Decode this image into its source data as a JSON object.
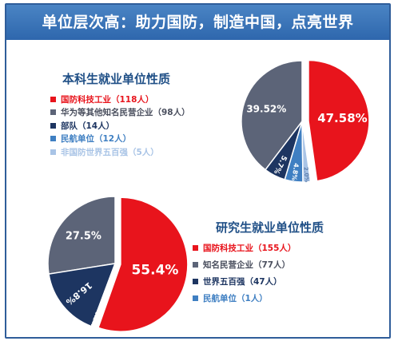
{
  "header": {
    "title": "单位层次高：助力国防，制造中国，点亮世界"
  },
  "chart_data": [
    {
      "type": "pie",
      "title": "本科生就业单位性质",
      "categories": [
        "国防科技工业（118人）",
        "华为等其他知名民营企业（98人）",
        "部队（14人）",
        "民航单位（12人）",
        "非国防世界五百强（5人）"
      ],
      "values": [
        47.58,
        39.52,
        5.7,
        4.8,
        2.0
      ],
      "slice_labels": [
        "47.58%",
        "39.52%",
        "5.7%",
        "4.8%",
        "2.0%"
      ],
      "colors": [
        "#e8141c",
        "#5c6478",
        "#1d3561",
        "#3f7fc2",
        "#a9c4e6"
      ],
      "legend_text_colors": [
        "#e8141c",
        "#4a4f5e",
        "#1d3561",
        "#3f7fc2",
        "#a9c4e6"
      ],
      "legend_position": "left"
    },
    {
      "type": "pie",
      "title": "研究生就业单位性质",
      "categories": [
        "国防科技工业（155人）",
        "知名民营企业（77人）",
        "世界五百强（47人）",
        "民航单位（1人）"
      ],
      "values": [
        55.4,
        27.5,
        16.8,
        0.3
      ],
      "slice_labels": [
        "55.4%",
        "27.5%",
        "16.8%",
        "0.3%"
      ],
      "colors": [
        "#e8141c",
        "#5c6478",
        "#1d3561",
        "#3f7fc2"
      ],
      "legend_text_colors": [
        "#e8141c",
        "#4a4f5e",
        "#1d3561",
        "#3f7fc2"
      ],
      "legend_position": "right"
    }
  ]
}
